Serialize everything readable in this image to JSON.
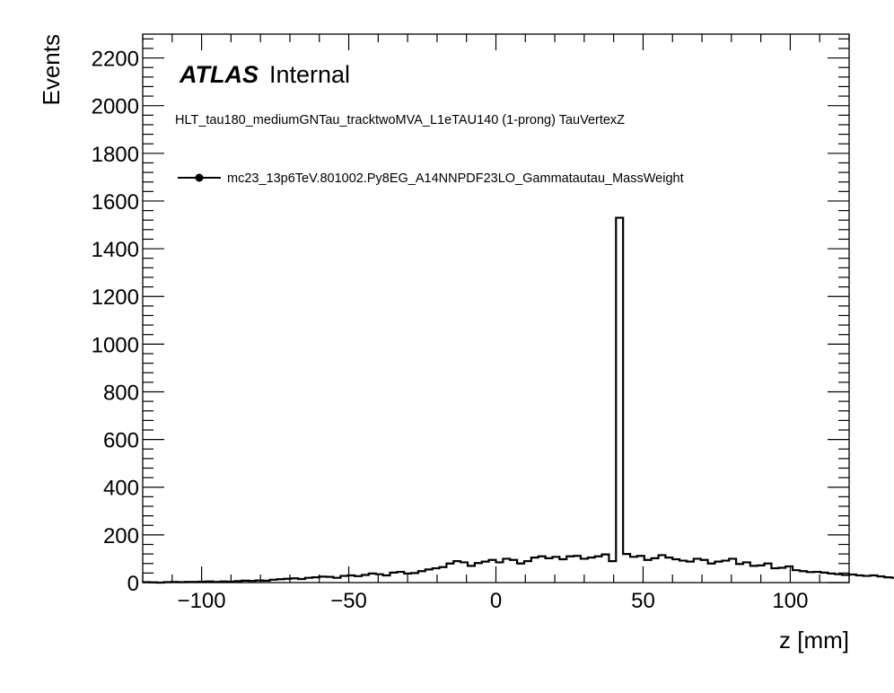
{
  "chart_data": {
    "type": "histogram",
    "xlabel": "z [mm]",
    "ylabel": "Events",
    "xlim": [
      -120,
      120
    ],
    "ylim": [
      0,
      2300
    ],
    "bin_width": 2.4,
    "x_ticks": [
      -100,
      -50,
      0,
      50,
      100
    ],
    "x_tick_labels": [
      "−100",
      "−50",
      "0",
      "50",
      "100"
    ],
    "y_ticks": [
      0,
      200,
      400,
      600,
      800,
      1000,
      1200,
      1400,
      1600,
      1800,
      2000,
      2200
    ],
    "y_tick_labels": [
      "0",
      "200",
      "400",
      "600",
      "800",
      "1000",
      "1200",
      "1400",
      "1600",
      "1800",
      "2000",
      "2200"
    ],
    "label_main": "ATLAS",
    "label_sub": "Internal",
    "subtitle": "HLT_tau180_mediumGNTau_tracktwoMVA_L1eTAU140 (1-prong) TauVertexZ",
    "legend_position": "top-left",
    "series": [
      {
        "name": "mc23_13p6TeV.801002.Py8EG_A14NNPDF23LO_Gammatautau_MassWeight",
        "color": "#000000",
        "values": [
          2,
          1,
          0,
          2,
          3,
          2,
          3,
          3,
          4,
          5,
          3,
          5,
          4,
          6,
          8,
          7,
          9,
          8,
          12,
          14,
          16,
          18,
          15,
          20,
          22,
          25,
          24,
          20,
          28,
          30,
          27,
          32,
          38,
          35,
          30,
          42,
          45,
          38,
          40,
          48,
          55,
          60,
          65,
          80,
          90,
          85,
          70,
          82,
          88,
          95,
          85,
          100,
          95,
          80,
          90,
          105,
          110,
          102,
          108,
          98,
          110,
          112,
          100,
          105,
          110,
          118,
          90,
          1530,
          120,
          108,
          112,
          95,
          102,
          115,
          105,
          98,
          92,
          88,
          100,
          95,
          80,
          88,
          92,
          100,
          78,
          85,
          70,
          72,
          80,
          60,
          62,
          68,
          52,
          48,
          44,
          45,
          42,
          38,
          35,
          32,
          34,
          30,
          28,
          30,
          26,
          22,
          20,
          18,
          15,
          16,
          14,
          12,
          12,
          10,
          9,
          8,
          7,
          6,
          5,
          8,
          5,
          4,
          3,
          2,
          3,
          4,
          2,
          3,
          2,
          2
        ]
      }
    ]
  }
}
